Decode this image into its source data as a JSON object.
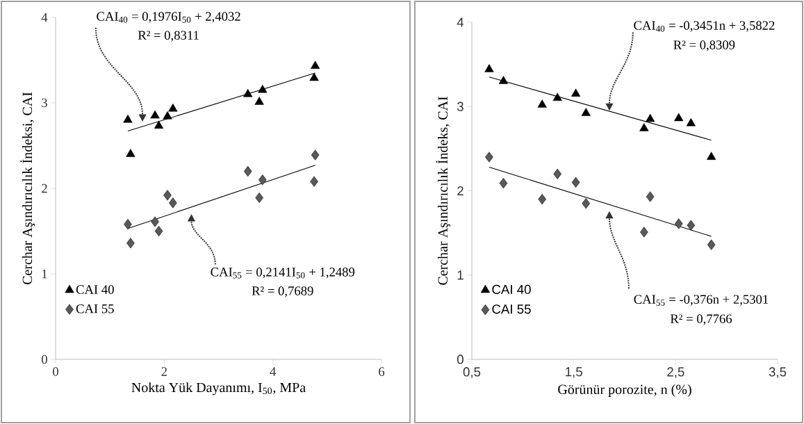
{
  "chart_data": [
    {
      "type": "scatter",
      "xlabel": "Nokta Yük Dayanımı, I$_{50}$, MPa",
      "ylabel": "Cerchar Aşındırıcılık İndeksi, CAI",
      "xlim": [
        0,
        6
      ],
      "ylim": [
        0,
        4
      ],
      "xticks": [
        0,
        2,
        4,
        6
      ],
      "yticks": [
        0,
        1,
        2,
        3,
        4
      ],
      "legend": "bottom left",
      "grid": false,
      "annotations": [
        "CAI$_{40}$ = 0,1976I$_{50}$ + 2,4032",
        "R² = 0,8311",
        "CAI$_{55}$ = 0,2141I$_{50}$ + 1,2489",
        "R² = 0,7689"
      ],
      "series": [
        {
          "name": "CAI 40",
          "color": "#000000",
          "marker": "triangle",
          "x": [
            1.33,
            1.38,
            1.83,
            1.9,
            2.06,
            2.16,
            3.54,
            3.81,
            3.75,
            4.78,
            4.76
          ],
          "values": [
            2.8,
            2.4,
            2.85,
            2.73,
            2.84,
            2.93,
            3.1,
            3.15,
            3.01,
            3.43,
            3.29
          ]
        },
        {
          "name": "CAI 55",
          "color": "#595959",
          "marker": "diamond",
          "x": [
            1.33,
            1.38,
            1.83,
            1.9,
            2.06,
            2.16,
            3.54,
            3.81,
            3.75,
            4.78,
            4.76
          ],
          "values": [
            1.58,
            1.36,
            1.61,
            1.5,
            1.92,
            1.83,
            2.2,
            2.1,
            1.89,
            2.39,
            2.08
          ]
        },
        {
          "type": "line",
          "color": "#000000",
          "x": [
            1.33,
            4.78
          ],
          "values": [
            2.67,
            3.35
          ]
        },
        {
          "type": "line",
          "color": "#000000",
          "x": [
            1.33,
            4.78
          ],
          "values": [
            1.53,
            2.27
          ]
        }
      ]
    },
    {
      "type": "scatter",
      "xlabel": "Görünür porozite, n (%)",
      "ylabel": "Cerchar Aşındırıcılık İndeks, CAI",
      "xlim": [
        0.5,
        3.5
      ],
      "ylim": [
        0,
        4
      ],
      "xticks": [
        {
          "value": 0.5,
          "label": "0,5"
        },
        {
          "value": 1.5,
          "label": "1,5"
        },
        {
          "value": 2.5,
          "label": "2,5"
        },
        {
          "value": 3.5,
          "label": "3,5"
        }
      ],
      "yticks": [
        0,
        1,
        2,
        3,
        4
      ],
      "legend": "bottom left",
      "grid": false,
      "annotations": [
        "CAI$_{40}$ = -0,3451n + 3,5822",
        "R² = 0,8309",
        "CAI$_{55}$ = -0,376n + 2,5301",
        "R² = 0,7766"
      ],
      "series": [
        {
          "name": "CAI 40",
          "color": "#000000",
          "marker": "triangle",
          "x": [
            0.67,
            0.81,
            1.19,
            1.34,
            1.52,
            1.62,
            2.19,
            2.25,
            2.53,
            2.65,
            2.85
          ],
          "values": [
            3.44,
            3.3,
            3.02,
            3.1,
            3.15,
            2.92,
            2.74,
            2.85,
            2.86,
            2.8,
            2.4
          ]
        },
        {
          "name": "CAI 55",
          "color": "#595959",
          "marker": "diamond",
          "x": [
            0.67,
            0.81,
            1.19,
            1.34,
            1.52,
            1.62,
            2.19,
            2.25,
            2.53,
            2.65,
            2.85
          ],
          "values": [
            2.4,
            2.09,
            1.9,
            2.2,
            2.1,
            1.85,
            1.51,
            1.93,
            1.61,
            1.59,
            1.36
          ]
        },
        {
          "type": "line",
          "color": "#000000",
          "x": [
            0.67,
            2.85
          ],
          "values": [
            3.35,
            2.6
          ]
        },
        {
          "type": "line",
          "color": "#000000",
          "x": [
            0.67,
            2.85
          ],
          "values": [
            2.28,
            1.46
          ]
        }
      ]
    }
  ]
}
